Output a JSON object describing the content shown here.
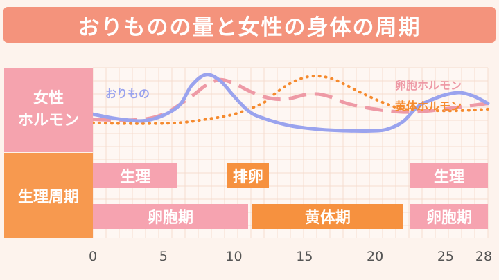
{
  "title": "おりものの量と女性の身体の周期",
  "side_labels": {
    "hormone_line1": "女性",
    "hormone_line2": "ホルモン",
    "cycle": "生理周期"
  },
  "colors": {
    "title_bg": "#f4937c",
    "discharge": "#9aa3ee",
    "estrogen": "#ee9aa6",
    "progesterone": "#f58a2e",
    "menstruation_bar": "#f6a3b0",
    "ovulation_bar": "#f6913f"
  },
  "phases": [
    {
      "label": "生理",
      "start": 0,
      "end": 6,
      "color": "pink",
      "row": 1
    },
    {
      "label": "排卵",
      "start": 9.5,
      "end": 12.5,
      "color": "orange",
      "row": 1
    },
    {
      "label": "生理",
      "start": 22.5,
      "end": 28,
      "color": "pink",
      "row": 1
    },
    {
      "label": "卵胞期",
      "start": 0,
      "end": 11,
      "color": "pink",
      "row": 2
    },
    {
      "label": "黄体期",
      "start": 11.3,
      "end": 22,
      "color": "orange",
      "row": 2
    },
    {
      "label": "卵胞期",
      "start": 22.5,
      "end": 28,
      "color": "pink",
      "row": 2
    }
  ],
  "chart_data": {
    "type": "line",
    "title": "おりものの量と女性の身体の周期",
    "x_ticks": [
      0,
      5,
      10,
      15,
      20,
      25,
      28
    ],
    "xlim": [
      0,
      28
    ],
    "grid": true,
    "series": [
      {
        "name": "おりもの",
        "style": "solid",
        "color": "#9aa3ee",
        "x": [
          0,
          2,
          4,
          6,
          7,
          8,
          9,
          10,
          11,
          12,
          14,
          16,
          18,
          20,
          21,
          22,
          23,
          24,
          25,
          26,
          27,
          28
        ],
        "y": [
          0.45,
          0.38,
          0.37,
          0.55,
          0.85,
          1.0,
          0.92,
          0.7,
          0.5,
          0.4,
          0.29,
          0.24,
          0.22,
          0.22,
          0.25,
          0.35,
          0.55,
          0.65,
          0.72,
          0.75,
          0.7,
          0.6
        ]
      },
      {
        "name": "卵胞ホルモン",
        "style": "dashed",
        "color": "#ee9aa6",
        "x": [
          0,
          3,
          5,
          7,
          8,
          9,
          10,
          11,
          12,
          13,
          14,
          15,
          16,
          17,
          18,
          20,
          22,
          24,
          26,
          28
        ],
        "y": [
          0.38,
          0.37,
          0.45,
          0.7,
          0.85,
          0.93,
          0.88,
          0.78,
          0.7,
          0.66,
          0.67,
          0.72,
          0.73,
          0.68,
          0.6,
          0.52,
          0.48,
          0.5,
          0.55,
          0.6
        ]
      },
      {
        "name": "黄体ホルモン",
        "style": "dotted",
        "color": "#f58a2e",
        "x": [
          0,
          3,
          6,
          8,
          10,
          12,
          13,
          14,
          15,
          16,
          17,
          18,
          19,
          20,
          21,
          22,
          24,
          26,
          28
        ],
        "y": [
          0.33,
          0.32,
          0.33,
          0.38,
          0.45,
          0.6,
          0.75,
          0.88,
          0.96,
          0.98,
          0.94,
          0.85,
          0.75,
          0.66,
          0.58,
          0.52,
          0.5,
          0.5,
          0.52
        ]
      }
    ]
  }
}
